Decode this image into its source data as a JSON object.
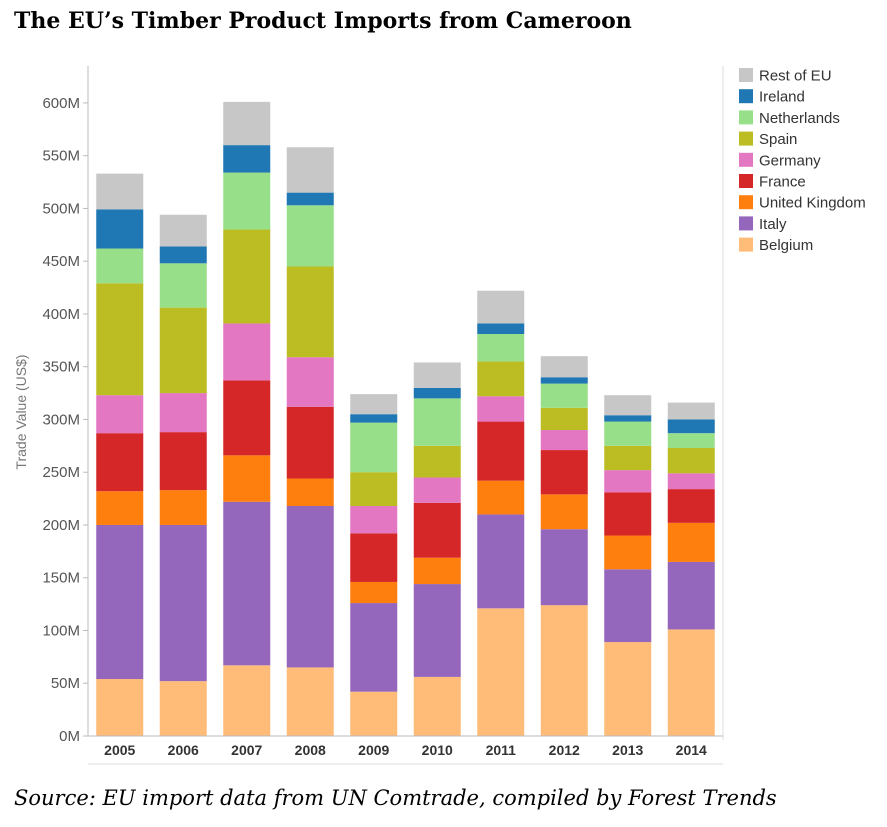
{
  "title": "The EU’s Timber Product Imports from Cameroon",
  "source": "Source: EU import data from UN Comtrade, compiled by Forest Trends",
  "chart_data": {
    "type": "bar",
    "stacked": true,
    "title": "The EU’s Timber Product Imports from Cameroon",
    "xlabel": "",
    "ylabel": "Trade Value (US$)",
    "ylim": [
      0,
      635
    ],
    "y_unit": "M",
    "y_ticks": [
      "0M",
      "50M",
      "100M",
      "150M",
      "200M",
      "250M",
      "300M",
      "350M",
      "400M",
      "450M",
      "500M",
      "550M",
      "600M"
    ],
    "categories": [
      "2005",
      "2006",
      "2007",
      "2008",
      "2009",
      "2010",
      "2011",
      "2012",
      "2013",
      "2014"
    ],
    "grid": false,
    "legend_position": "right",
    "series": [
      {
        "name": "Belgium",
        "color": "#ffbb78",
        "values": [
          54,
          52,
          67,
          65,
          42,
          56,
          121,
          124,
          89,
          101
        ]
      },
      {
        "name": "Italy",
        "color": "#9467bd",
        "values": [
          146,
          148,
          155,
          153,
          84,
          88,
          89,
          72,
          69,
          64
        ]
      },
      {
        "name": "United Kingdom",
        "color": "#ff7f0e",
        "values": [
          32,
          33,
          44,
          26,
          20,
          25,
          32,
          33,
          32,
          37
        ]
      },
      {
        "name": "France",
        "color": "#d62728",
        "values": [
          55,
          55,
          71,
          68,
          46,
          52,
          56,
          42,
          41,
          32
        ]
      },
      {
        "name": "Germany",
        "color": "#e377c2",
        "values": [
          36,
          37,
          54,
          47,
          26,
          24,
          24,
          19,
          21,
          15
        ]
      },
      {
        "name": "Spain",
        "color": "#bcbd22",
        "values": [
          106,
          81,
          89,
          86,
          32,
          30,
          33,
          21,
          23,
          24
        ]
      },
      {
        "name": "Netherlands",
        "color": "#98df8a",
        "values": [
          33,
          42,
          54,
          58,
          47,
          45,
          26,
          23,
          23,
          14
        ]
      },
      {
        "name": "Ireland",
        "color": "#1f77b4",
        "values": [
          37,
          16,
          26,
          12,
          8,
          10,
          10,
          6,
          6,
          13
        ]
      },
      {
        "name": "Rest of EU",
        "color": "#c7c7c7",
        "values": [
          34,
          30,
          41,
          43,
          19,
          24,
          31,
          20,
          19,
          16
        ]
      }
    ],
    "legend_order": [
      "Rest of EU",
      "Ireland",
      "Netherlands",
      "Spain",
      "Germany",
      "France",
      "United Kingdom",
      "Italy",
      "Belgium"
    ]
  }
}
